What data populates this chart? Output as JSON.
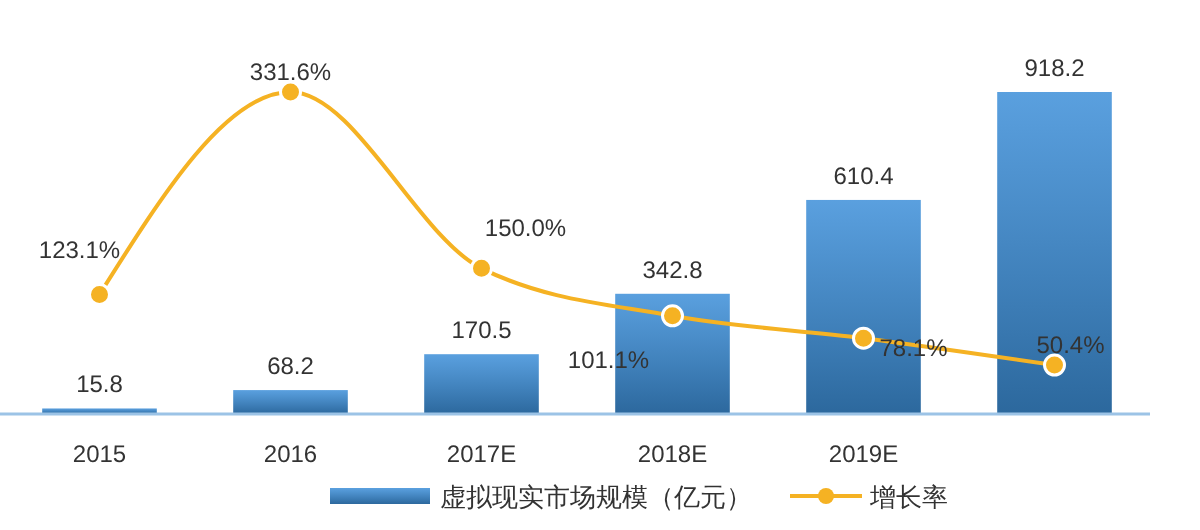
{
  "chart_data": {
    "type": "bar",
    "categories": [
      "2015",
      "2016",
      "2017E",
      "2018E",
      "2019E",
      null
    ],
    "series": [
      {
        "name": "虚拟现实市场规模（亿元）",
        "color": "#3d8fd9",
        "values": [
          15.8,
          68.2,
          170.5,
          342.8,
          610.4,
          918.2
        ],
        "value_labels": [
          "15.8",
          "68.2",
          "170.5",
          "342.8",
          "610.4",
          "918.2"
        ]
      },
      {
        "name": "增长率",
        "type": "line",
        "axis": "y2",
        "color": "#f5b223",
        "values": [
          123.1,
          331.6,
          150.0,
          101.1,
          78.1,
          50.4
        ],
        "value_labels": [
          "123.1%",
          "331.6%",
          "150.0%",
          "101.1%",
          "78.1%",
          "50.4%"
        ]
      }
    ],
    "legend": "bottom",
    "marker": "circle"
  }
}
